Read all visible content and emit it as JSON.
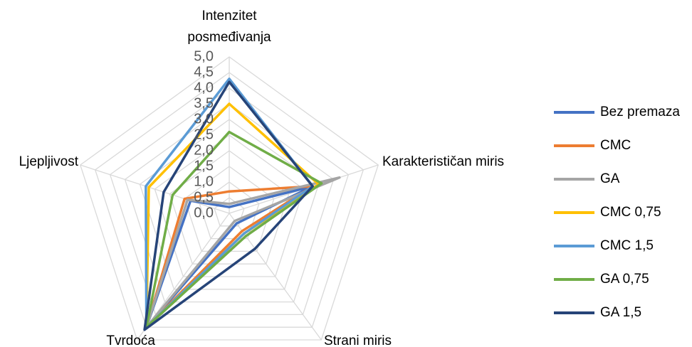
{
  "chart_data": {
    "type": "radar",
    "categories": [
      "Intenzitet posmeđivanja",
      "Karakterističan miris",
      "Strani miris",
      "Tvrdoća",
      "Ljepljivost"
    ],
    "rlim": [
      0,
      5
    ],
    "rticks": [
      {
        "value": 0,
        "label": "0,0"
      },
      {
        "value": 0.5,
        "label": "0,5"
      },
      {
        "value": 1,
        "label": "1,0"
      },
      {
        "value": 1.5,
        "label": "1,5"
      },
      {
        "value": 2,
        "label": "2,0"
      },
      {
        "value": 2.5,
        "label": "2,5"
      },
      {
        "value": 3,
        "label": "3,0"
      },
      {
        "value": 3.5,
        "label": "3,5"
      },
      {
        "value": 4,
        "label": "4,0"
      },
      {
        "value": 4.5,
        "label": "4,5"
      },
      {
        "value": 5,
        "label": "5,0"
      }
    ],
    "grid": true,
    "legend": "right",
    "series": [
      {
        "name": "Bez premaza",
        "color": "#4472c4",
        "values": [
          0.2,
          2.8,
          0.4,
          4.5,
          1.3
        ]
      },
      {
        "name": "CMC",
        "color": "#ed7d31",
        "values": [
          0.7,
          2.8,
          0.7,
          4.5,
          1.5
        ]
      },
      {
        "name": "GA",
        "color": "#a5a5a5",
        "values": [
          0.3,
          3.7,
          0.3,
          4.5,
          1.4
        ]
      },
      {
        "name": "CMC 0,75",
        "color": "#ffc000",
        "values": [
          3.5,
          3.0,
          0.8,
          4.5,
          2.7
        ]
      },
      {
        "name": "CMC 1,5",
        "color": "#5b9bd5",
        "values": [
          4.3,
          2.8,
          0.8,
          4.5,
          2.8
        ]
      },
      {
        "name": "GA 0,75",
        "color": "#70ad47",
        "values": [
          2.6,
          3.1,
          0.9,
          4.5,
          1.9
        ]
      },
      {
        "name": "GA 1,5",
        "color": "#264478",
        "values": [
          4.2,
          2.8,
          1.4,
          4.6,
          2.2
        ]
      }
    ]
  }
}
